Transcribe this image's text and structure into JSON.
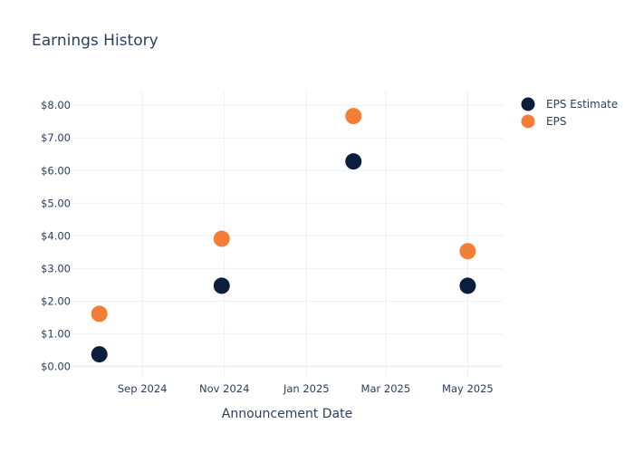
{
  "chart_data": {
    "type": "scatter",
    "title": "Earnings History",
    "xlabel": "Announcement Date",
    "ylabel": "",
    "x_tick_labels": [
      "Sep 2024",
      "Nov 2024",
      "Jan 2025",
      "Mar 2025",
      "May 2025"
    ],
    "x_tick_dates": [
      "2024-09-01",
      "2024-11-01",
      "2025-01-01",
      "2025-03-01",
      "2025-05-01"
    ],
    "xlim": [
      "2024-07-11",
      "2025-05-27"
    ],
    "y_tick_labels": [
      "$0.00",
      "$1.00",
      "$2.00",
      "$3.00",
      "$4.00",
      "$5.00",
      "$6.00",
      "$7.00",
      "$8.00"
    ],
    "ylim": [
      -0.35,
      8.45
    ],
    "grid": true,
    "legend_position": "top-right",
    "series": [
      {
        "name": "EPS Estimate",
        "color": "#0b1e3d",
        "points": [
          {
            "x": "2024-07-31",
            "y": 0.37
          },
          {
            "x": "2024-10-30",
            "y": 2.47
          },
          {
            "x": "2025-02-05",
            "y": 6.28
          },
          {
            "x": "2025-05-01",
            "y": 2.47
          }
        ]
      },
      {
        "name": "EPS",
        "color": "#f47e36",
        "points": [
          {
            "x": "2024-07-31",
            "y": 1.61
          },
          {
            "x": "2024-10-30",
            "y": 3.91
          },
          {
            "x": "2025-02-05",
            "y": 7.67
          },
          {
            "x": "2025-05-01",
            "y": 3.53
          }
        ]
      }
    ]
  }
}
